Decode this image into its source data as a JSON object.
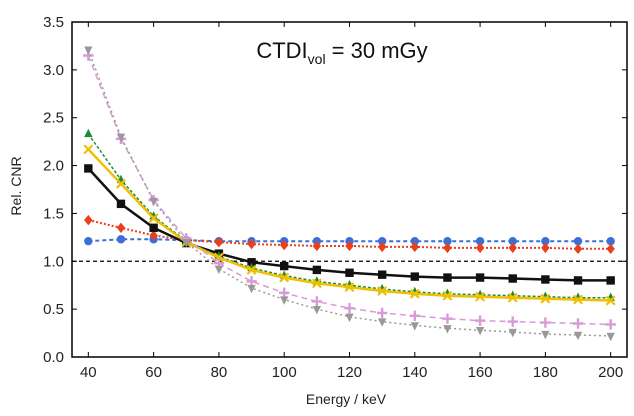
{
  "chart_data": {
    "type": "line",
    "title_main": "CTDI",
    "title_sub": "vol",
    "title_rest": " = 30 mGy",
    "xlabel": "Energy / keV",
    "ylabel": "Rel. CNR",
    "xlim": [
      35,
      205
    ],
    "ylim": [
      0.0,
      3.5
    ],
    "xticks": [
      40,
      60,
      80,
      100,
      120,
      140,
      160,
      180,
      200
    ],
    "yticks": [
      0.0,
      0.5,
      1.0,
      1.5,
      2.0,
      2.5,
      3.0,
      3.5
    ],
    "ytick_labels": [
      "0.0",
      "0.5",
      "1.0",
      "1.5",
      "2.0",
      "2.5",
      "3.0",
      "3.5"
    ],
    "reference_line": {
      "y": 1.0,
      "style": "dashed",
      "color": "#000000"
    },
    "grid": false,
    "x": [
      40,
      50,
      60,
      70,
      80,
      90,
      100,
      110,
      120,
      130,
      140,
      150,
      160,
      170,
      180,
      190,
      200
    ],
    "series": [
      {
        "color": "#3a6fd8",
        "marker": "circle",
        "dash": "4,3",
        "width": 2,
        "values": [
          1.21,
          1.23,
          1.23,
          1.22,
          1.21,
          1.21,
          1.21,
          1.21,
          1.21,
          1.21,
          1.21,
          1.21,
          1.21,
          1.21,
          1.21,
          1.21,
          1.21
        ]
      },
      {
        "color": "#e8401c",
        "marker": "diamond",
        "dash": "2,2",
        "width": 2,
        "values": [
          1.43,
          1.35,
          1.27,
          1.22,
          1.2,
          1.18,
          1.17,
          1.16,
          1.16,
          1.15,
          1.15,
          1.14,
          1.14,
          1.14,
          1.14,
          1.13,
          1.13
        ]
      },
      {
        "color": "#111111",
        "marker": "square",
        "dash": "",
        "width": 2.5,
        "values": [
          1.97,
          1.6,
          1.35,
          1.19,
          1.08,
          0.99,
          0.95,
          0.91,
          0.88,
          0.86,
          0.84,
          0.83,
          0.83,
          0.82,
          0.81,
          0.8,
          0.8
        ]
      },
      {
        "color": "#1f8a3a",
        "marker": "triangle-up",
        "dash": "3,2",
        "width": 1.5,
        "values": [
          2.33,
          1.85,
          1.47,
          1.21,
          1.05,
          0.93,
          0.85,
          0.79,
          0.75,
          0.71,
          0.68,
          0.66,
          0.65,
          0.64,
          0.63,
          0.62,
          0.62
        ]
      },
      {
        "color": "#f0c000",
        "marker": "x",
        "dash": "",
        "width": 2.5,
        "values": [
          2.17,
          1.81,
          1.45,
          1.2,
          1.04,
          0.91,
          0.83,
          0.77,
          0.73,
          0.69,
          0.66,
          0.64,
          0.63,
          0.62,
          0.61,
          0.6,
          0.59
        ]
      },
      {
        "color": "#d99ad9",
        "marker": "plus",
        "dash": "6,4",
        "width": 1.5,
        "values": [
          3.15,
          2.28,
          1.64,
          1.24,
          0.98,
          0.79,
          0.67,
          0.58,
          0.51,
          0.46,
          0.43,
          0.4,
          0.38,
          0.37,
          0.36,
          0.35,
          0.34
        ]
      },
      {
        "color": "#999999",
        "marker": "triangle-down",
        "dash": "2,3",
        "width": 1.5,
        "values": [
          3.21,
          2.3,
          1.63,
          1.2,
          0.92,
          0.72,
          0.6,
          0.5,
          0.42,
          0.37,
          0.33,
          0.3,
          0.28,
          0.26,
          0.24,
          0.23,
          0.22
        ]
      }
    ]
  }
}
